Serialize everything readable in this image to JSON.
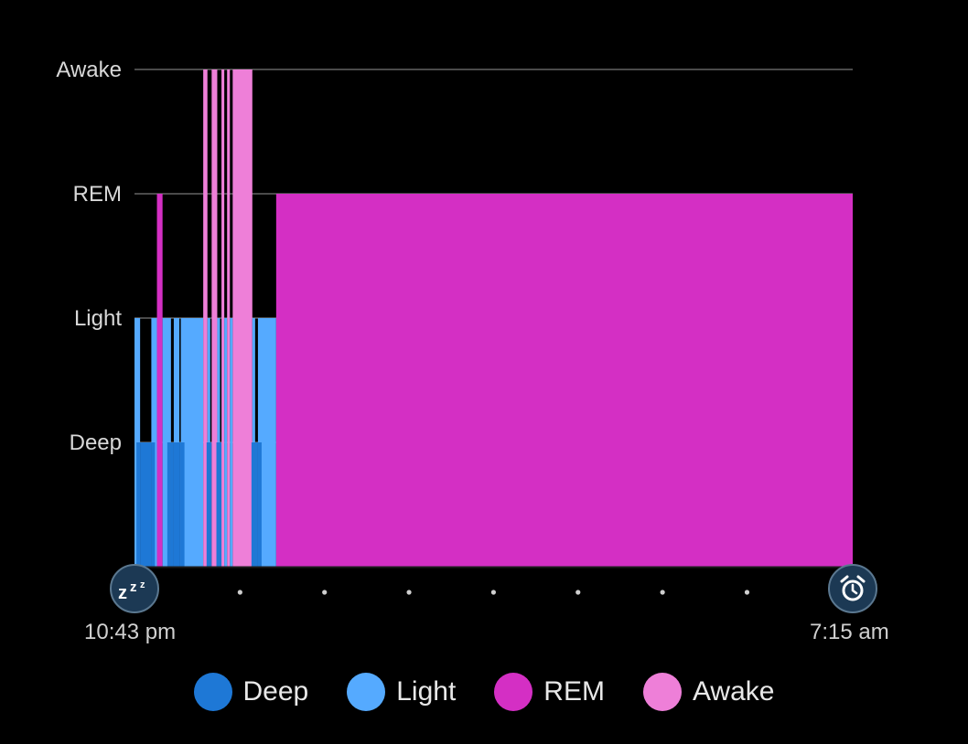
{
  "colors": {
    "background": "#000000",
    "deep": "#1e78d6",
    "light": "#55aaff",
    "rem": "#d42fc4",
    "awake": "#ee7fd8",
    "gridline": "#4a4a4a",
    "dots": "#cfcfcf"
  },
  "chart_data": {
    "type": "area",
    "title": "",
    "x_start": "10:43 pm",
    "x_end": "7:15 am",
    "y_levels": [
      "Deep",
      "Light",
      "REM",
      "Awake"
    ],
    "grid": true,
    "legend_position": "bottom",
    "series": [
      {
        "name": "Deep",
        "color": "#1e78d6"
      },
      {
        "name": "Light",
        "color": "#55aaff"
      },
      {
        "name": "REM",
        "color": "#d42fc4"
      },
      {
        "name": "Awake",
        "color": "#ee7fd8"
      }
    ],
    "segments": [
      {
        "stage": "Light",
        "start": "10:43 pm",
        "end": "10:47 pm"
      },
      {
        "stage": "Deep",
        "start": "10:47 pm",
        "end": "10:55 pm"
      },
      {
        "stage": "Light",
        "start": "10:55 pm",
        "end": "10:59 pm"
      },
      {
        "stage": "REM",
        "start": "10:59 pm",
        "end": "11:03 pm"
      },
      {
        "stage": "Light",
        "start": "11:03 pm",
        "end": "11:09 pm"
      },
      {
        "stage": "Deep",
        "start": "11:09 pm",
        "end": "11:11 pm"
      },
      {
        "stage": "Light",
        "start": "11:11 pm",
        "end": "11:15 pm"
      },
      {
        "stage": "Deep",
        "start": "11:15 pm",
        "end": "11:16 pm"
      },
      {
        "stage": "Light",
        "start": "11:16 pm",
        "end": "11:32 pm"
      },
      {
        "stage": "Awake",
        "start": "11:32 pm",
        "end": "11:35 pm"
      },
      {
        "stage": "Light",
        "start": "11:35 pm",
        "end": "11:37 pm"
      },
      {
        "stage": "Deep",
        "start": "11:37 pm",
        "end": "11:38 pm"
      },
      {
        "stage": "Awake",
        "start": "11:38 pm",
        "end": "11:42 pm"
      },
      {
        "stage": "Light",
        "start": "11:42 pm",
        "end": "11:44 pm"
      },
      {
        "stage": "Deep",
        "start": "11:44 pm",
        "end": "11:45 pm"
      },
      {
        "stage": "Awake",
        "start": "11:45 pm",
        "end": "11:47 pm"
      },
      {
        "stage": "Light",
        "start": "11:47 pm",
        "end": "11:49 pm"
      },
      {
        "stage": "Awake",
        "start": "11:49 pm",
        "end": "11:51 pm"
      },
      {
        "stage": "Light",
        "start": "11:51 pm",
        "end": "11:53 pm"
      },
      {
        "stage": "Awake",
        "start": "11:53 pm",
        "end": "12:07 am"
      },
      {
        "stage": "Light",
        "start": "12:07 am",
        "end": "12:09 am"
      },
      {
        "stage": "Deep",
        "start": "12:09 am",
        "end": "12:11 am"
      },
      {
        "stage": "Light",
        "start": "12:11 am",
        "end": "12:24 am"
      },
      {
        "stage": "REM",
        "start": "12:24 am",
        "end": "7:15 am"
      }
    ]
  },
  "axis": {
    "y_labels": [
      "Awake",
      "REM",
      "Light",
      "Deep"
    ],
    "start_time": "10:43 pm",
    "end_time": "7:15 am",
    "start_icon": "sleep-zzz-icon",
    "end_icon": "alarm-clock-icon"
  },
  "legend": [
    {
      "label": "Deep",
      "color": "#1e78d6"
    },
    {
      "label": "Light",
      "color": "#55aaff"
    },
    {
      "label": "REM",
      "color": "#d42fc4"
    },
    {
      "label": "Awake",
      "color": "#ee7fd8"
    }
  ]
}
